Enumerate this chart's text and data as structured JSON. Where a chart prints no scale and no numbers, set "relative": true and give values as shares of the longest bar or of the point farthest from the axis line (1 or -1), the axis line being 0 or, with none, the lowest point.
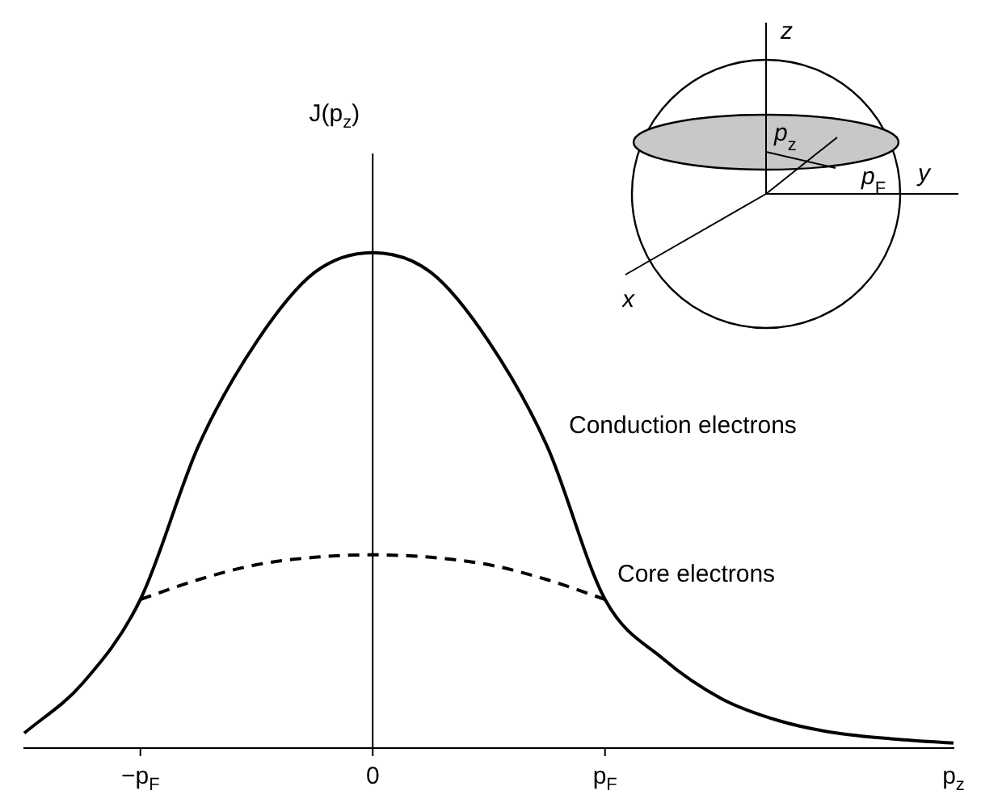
{
  "chart_data": {
    "type": "line",
    "relative": true,
    "xlabel": "p$_{z}$",
    "ylabel": "J(p$_{z}$)",
    "categories": [
      null,
      null,
      "−p$_{F}$",
      null,
      null,
      null,
      "0",
      null,
      null,
      null,
      "p$_{F}$",
      null,
      null,
      null,
      null,
      null,
      null
    ],
    "tick_labels": "x",
    "grid": false,
    "legend": false,
    "marker": "none",
    "ref_lines": [
      {
        "axis": "x",
        "value": "0"
      }
    ],
    "annotations": [
      "Conduction electrons",
      "Core electrons",
      "z",
      "y",
      "x",
      "p$_{z}$",
      "p$_{F}$"
    ],
    "series": [
      {
        "color": "#000000",
        "line_style": "solid",
        "values": [
          0.03,
          0.13,
          0.3,
          0.61,
          0.82,
          0.96,
          1,
          0.96,
          0.82,
          0.61,
          0.3,
          0.18,
          0.1,
          0.055,
          0.03,
          0.018,
          0.01
        ]
      },
      {
        "color": "#000000",
        "line_style": "dashed",
        "values": [
          null,
          null,
          0.3,
          0.34,
          0.37,
          0.385,
          0.39,
          0.385,
          0.37,
          0.34,
          0.3,
          null,
          null,
          null,
          null,
          null,
          null
        ]
      }
    ]
  }
}
